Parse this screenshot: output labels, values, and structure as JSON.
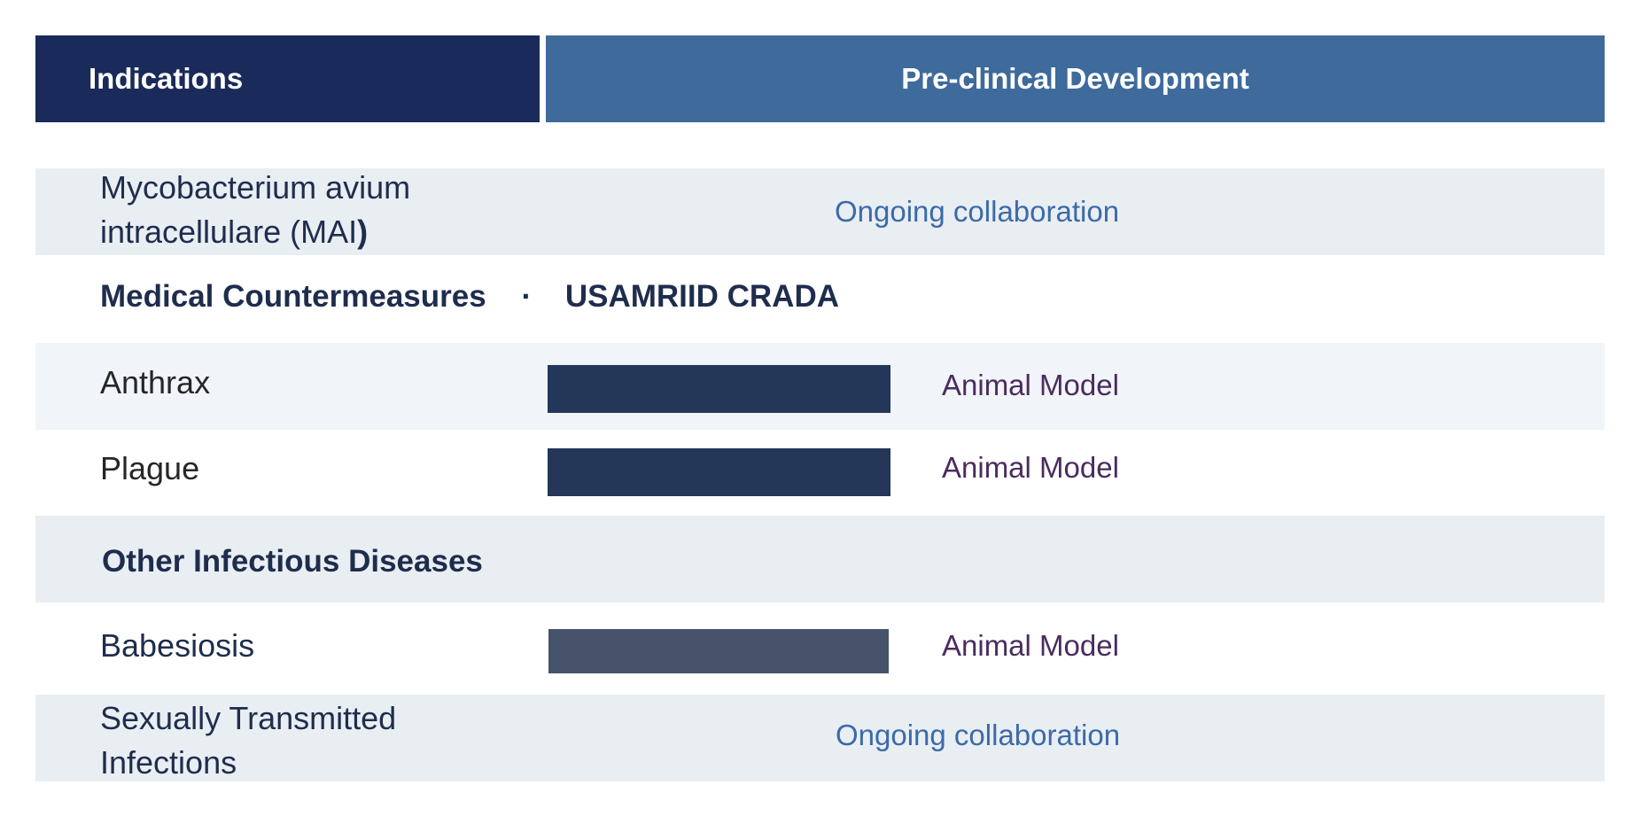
{
  "header": {
    "indications": "Indications",
    "preclinical": "Pre-clinical Development"
  },
  "rows": {
    "mai": {
      "line1": "Mycobacterium avium",
      "line2_prefix": "intracellulare (MAI",
      "line2_suffix": ")",
      "status": "Ongoing collaboration"
    },
    "mcm": {
      "title": "Medical Countermeasures",
      "separator": "·",
      "partner": "USAMRIID CRADA"
    },
    "anthrax": {
      "label": "Anthrax",
      "stage": "Animal Model"
    },
    "plague": {
      "label": "Plague",
      "stage": "Animal Model"
    },
    "oid": {
      "title": "Other Infectious Diseases"
    },
    "babesiosis": {
      "label": "Babesiosis",
      "stage": "Animal Model"
    },
    "sti": {
      "line1": "Sexually Transmitted",
      "line2": "Infections",
      "status": "Ongoing collaboration"
    }
  },
  "colors": {
    "header_indications": "#1a2a5a",
    "header_preclinical": "#3e6a9c",
    "bar_dark": "#243759",
    "bar_grey": "#46536a",
    "collaboration_text": "#3c6aa8",
    "stage_text": "#4a2c5e"
  }
}
